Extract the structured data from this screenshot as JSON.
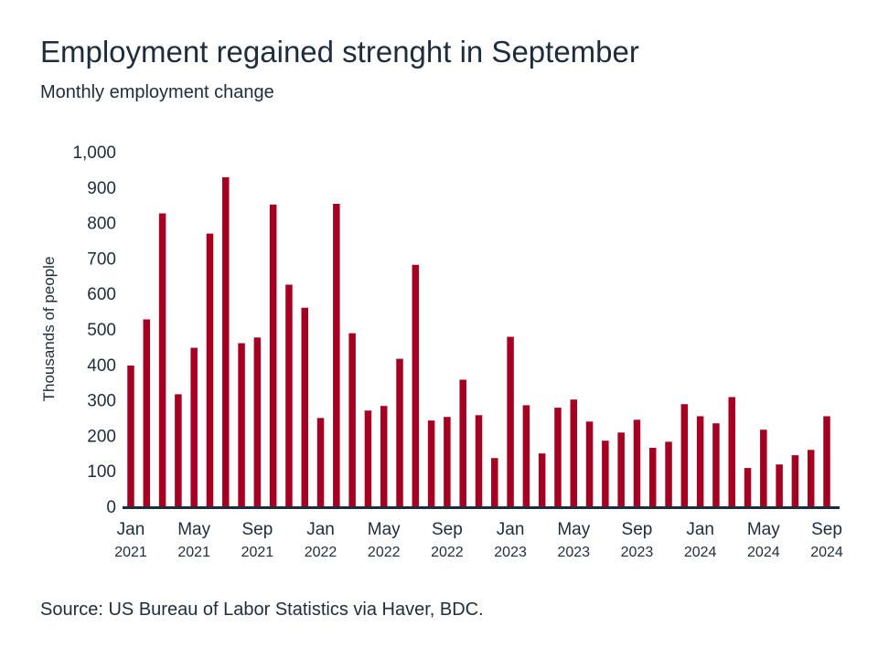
{
  "title": "Employment regained strenght in September",
  "subtitle": "Monthly employment change",
  "source": "Source: US Bureau of Labor Statistics via Haver, BDC.",
  "chart_data": {
    "type": "bar",
    "title": "Employment regained strenght in September",
    "subtitle": "Monthly employment change",
    "xlabel": "",
    "ylabel": "Thousands of people",
    "ylim": [
      0,
      1000
    ],
    "yticks": [
      "0",
      "100",
      "200",
      "300",
      "400",
      "500",
      "600",
      "700",
      "800",
      "900",
      "1,000"
    ],
    "ytick_values": [
      0,
      100,
      200,
      300,
      400,
      500,
      600,
      700,
      800,
      900,
      1000
    ],
    "grid": false,
    "bar_color": "#a50021",
    "axis_color": "#1e2d3b",
    "categories": [
      "Jan 2021",
      "Feb 2021",
      "Mar 2021",
      "Apr 2021",
      "May 2021",
      "Jun 2021",
      "Jul 2021",
      "Aug 2021",
      "Sep 2021",
      "Oct 2021",
      "Nov 2021",
      "Dec 2021",
      "Jan 2022",
      "Feb 2022",
      "Mar 2022",
      "Apr 2022",
      "May 2022",
      "Jun 2022",
      "Jul 2022",
      "Aug 2022",
      "Sep 2022",
      "Oct 2022",
      "Nov 2022",
      "Dec 2022",
      "Jan 2023",
      "Feb 2023",
      "Mar 2023",
      "Apr 2023",
      "May 2023",
      "Jun 2023",
      "Jul 2023",
      "Aug 2023",
      "Sep 2023",
      "Oct 2023",
      "Nov 2023",
      "Dec 2023",
      "Jan 2024",
      "Feb 2024",
      "Mar 2024",
      "Apr 2024",
      "May 2024",
      "Jun 2024",
      "Jul 2024",
      "Aug 2024",
      "Sep 2024"
    ],
    "values": [
      397,
      527,
      826,
      316,
      447,
      769,
      928,
      460,
      476,
      851,
      625,
      560,
      249,
      853,
      488,
      270,
      283,
      416,
      681,
      242,
      252,
      357,
      257,
      136,
      478,
      285,
      149,
      278,
      301,
      239,
      185,
      208,
      244,
      165,
      182,
      288,
      254,
      234,
      308,
      108,
      216,
      118,
      144,
      159,
      254
    ],
    "xtick_labels": [
      {
        "index": 0,
        "month": "Jan",
        "year": "2021"
      },
      {
        "index": 4,
        "month": "May",
        "year": "2021"
      },
      {
        "index": 8,
        "month": "Sep",
        "year": "2021"
      },
      {
        "index": 12,
        "month": "Jan",
        "year": "2022"
      },
      {
        "index": 16,
        "month": "May",
        "year": "2022"
      },
      {
        "index": 20,
        "month": "Sep",
        "year": "2022"
      },
      {
        "index": 24,
        "month": "Jan",
        "year": "2023"
      },
      {
        "index": 28,
        "month": "May",
        "year": "2023"
      },
      {
        "index": 32,
        "month": "Sep",
        "year": "2023"
      },
      {
        "index": 36,
        "month": "Jan",
        "year": "2024"
      },
      {
        "index": 40,
        "month": "May",
        "year": "2024"
      },
      {
        "index": 44,
        "month": "Sep",
        "year": "2024"
      }
    ]
  }
}
